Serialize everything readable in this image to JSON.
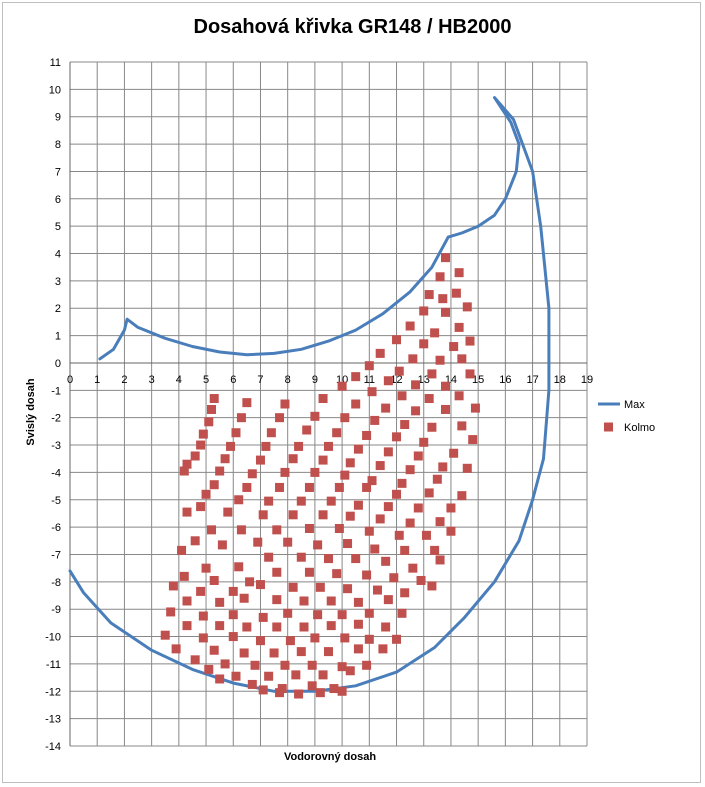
{
  "chart_data": {
    "type": "scatter",
    "title": "Dosahová křivka GR148 / HB2000",
    "xlabel": "Vodorovný dosah",
    "ylabel": "Svislý dosah",
    "xlim": [
      0,
      19
    ],
    "ylim": [
      -14,
      11
    ],
    "x_ticks": [
      "0",
      "1",
      "2",
      "3",
      "4",
      "5",
      "6",
      "7",
      "8",
      "9",
      "10",
      "11",
      "12",
      "13",
      "14",
      "15",
      "16",
      "17",
      "18",
      "19"
    ],
    "y_ticks": [
      "11",
      "10",
      "9",
      "8",
      "7",
      "6",
      "5",
      "4",
      "3",
      "2",
      "1",
      "0",
      "-1",
      "-2",
      "-3",
      "-4",
      "-5",
      "-6",
      "-7",
      "-8",
      "-9",
      "-10",
      "-11",
      "-12",
      "-13",
      "-14"
    ],
    "grid": true,
    "legend_position": "right",
    "series": [
      {
        "name": "Max",
        "kind": "line",
        "color": "#4a7ebb",
        "points": [
          [
            1.1,
            0.15
          ],
          [
            1.6,
            0.5
          ],
          [
            2.0,
            1.2
          ],
          [
            2.1,
            1.6
          ],
          [
            2.5,
            1.3
          ],
          [
            3.5,
            0.9
          ],
          [
            4.5,
            0.6
          ],
          [
            5.5,
            0.4
          ],
          [
            6.5,
            0.3
          ],
          [
            7.5,
            0.35
          ],
          [
            8.5,
            0.5
          ],
          [
            9.5,
            0.8
          ],
          [
            10.5,
            1.2
          ],
          [
            11.5,
            1.8
          ],
          [
            12.5,
            2.6
          ],
          [
            13.3,
            3.5
          ],
          [
            13.9,
            4.6
          ],
          [
            14.4,
            4.75
          ],
          [
            15.0,
            5.0
          ],
          [
            15.6,
            5.4
          ],
          [
            16.0,
            6.0
          ],
          [
            16.4,
            7.0
          ],
          [
            16.5,
            8.0
          ],
          [
            16.2,
            8.8
          ],
          [
            15.6,
            9.7
          ],
          [
            16.3,
            8.9
          ],
          [
            17.0,
            7.0
          ],
          [
            17.3,
            5.0
          ],
          [
            17.6,
            2.0
          ],
          [
            17.6,
            -1.0
          ],
          [
            17.4,
            -3.5
          ],
          [
            17.0,
            -5.0
          ],
          [
            16.5,
            -6.5
          ],
          [
            15.6,
            -8.0
          ],
          [
            14.5,
            -9.3
          ],
          [
            13.4,
            -10.4
          ],
          [
            12.0,
            -11.3
          ],
          [
            10.5,
            -11.8
          ],
          [
            9.0,
            -12.0
          ],
          [
            7.5,
            -12.0
          ],
          [
            6.0,
            -11.7
          ],
          [
            4.5,
            -11.2
          ],
          [
            3.0,
            -10.5
          ],
          [
            1.5,
            -9.5
          ],
          [
            0.5,
            -8.4
          ],
          [
            0.0,
            -7.6
          ]
        ]
      },
      {
        "name": "Kolmo",
        "kind": "scatter",
        "color": "#c0504d",
        "points": [
          [
            13.8,
            3.85
          ],
          [
            14.3,
            3.3
          ],
          [
            13.6,
            3.15
          ],
          [
            13.2,
            2.5
          ],
          [
            14.2,
            2.55
          ],
          [
            13.7,
            2.35
          ],
          [
            14.6,
            2.05
          ],
          [
            13.0,
            1.9
          ],
          [
            13.8,
            1.85
          ],
          [
            14.3,
            1.3
          ],
          [
            12.5,
            1.35
          ],
          [
            13.4,
            1.1
          ],
          [
            14.7,
            0.8
          ],
          [
            12.0,
            0.85
          ],
          [
            13.0,
            0.7
          ],
          [
            14.1,
            0.6
          ],
          [
            11.4,
            0.35
          ],
          [
            12.6,
            0.15
          ],
          [
            13.6,
            0.1
          ],
          [
            14.4,
            0.15
          ],
          [
            11.0,
            -0.1
          ],
          [
            12.1,
            -0.3
          ],
          [
            13.3,
            -0.4
          ],
          [
            14.7,
            -0.4
          ],
          [
            10.5,
            -0.5
          ],
          [
            11.7,
            -0.65
          ],
          [
            12.7,
            -0.8
          ],
          [
            13.8,
            -0.85
          ],
          [
            14.3,
            -1.2
          ],
          [
            10.0,
            -0.85
          ],
          [
            11.1,
            -1.05
          ],
          [
            12.2,
            -1.2
          ],
          [
            13.2,
            -1.3
          ],
          [
            14.9,
            -1.65
          ],
          [
            5.3,
            -1.3
          ],
          [
            6.5,
            -1.45
          ],
          [
            7.9,
            -1.5
          ],
          [
            9.3,
            -1.3
          ],
          [
            10.5,
            -1.5
          ],
          [
            11.6,
            -1.65
          ],
          [
            12.7,
            -1.75
          ],
          [
            13.8,
            -1.7
          ],
          [
            5.2,
            -1.7
          ],
          [
            6.3,
            -2.0
          ],
          [
            7.7,
            -2.0
          ],
          [
            9.0,
            -1.95
          ],
          [
            10.1,
            -2.0
          ],
          [
            11.2,
            -2.1
          ],
          [
            12.3,
            -2.25
          ],
          [
            13.3,
            -2.35
          ],
          [
            14.4,
            -2.3
          ],
          [
            5.1,
            -2.15
          ],
          [
            6.1,
            -2.55
          ],
          [
            7.4,
            -2.55
          ],
          [
            8.7,
            -2.45
          ],
          [
            9.8,
            -2.55
          ],
          [
            10.9,
            -2.65
          ],
          [
            12.0,
            -2.7
          ],
          [
            13.0,
            -2.9
          ],
          [
            14.8,
            -2.8
          ],
          [
            4.9,
            -2.6
          ],
          [
            5.9,
            -3.05
          ],
          [
            7.2,
            -3.05
          ],
          [
            8.4,
            -3.05
          ],
          [
            9.5,
            -3.05
          ],
          [
            10.6,
            -3.15
          ],
          [
            11.7,
            -3.25
          ],
          [
            12.8,
            -3.4
          ],
          [
            14.1,
            -3.3
          ],
          [
            4.8,
            -3.0
          ],
          [
            5.7,
            -3.5
          ],
          [
            7.0,
            -3.55
          ],
          [
            8.2,
            -3.5
          ],
          [
            9.3,
            -3.55
          ],
          [
            10.3,
            -3.65
          ],
          [
            11.4,
            -3.75
          ],
          [
            12.5,
            -3.9
          ],
          [
            13.7,
            -3.8
          ],
          [
            14.6,
            -3.85
          ],
          [
            4.2,
            -3.95
          ],
          [
            4.6,
            -3.4
          ],
          [
            5.5,
            -3.95
          ],
          [
            6.7,
            -4.05
          ],
          [
            7.9,
            -4.0
          ],
          [
            9.0,
            -4.0
          ],
          [
            10.1,
            -4.1
          ],
          [
            11.1,
            -4.3
          ],
          [
            12.2,
            -4.4
          ],
          [
            13.5,
            -4.25
          ],
          [
            4.3,
            -3.7
          ],
          [
            5.3,
            -4.45
          ],
          [
            6.5,
            -4.55
          ],
          [
            7.7,
            -4.55
          ],
          [
            8.8,
            -4.55
          ],
          [
            9.9,
            -4.55
          ],
          [
            10.9,
            -4.55
          ],
          [
            12.0,
            -4.8
          ],
          [
            13.2,
            -4.75
          ],
          [
            14.4,
            -4.85
          ],
          [
            4.3,
            -5.45
          ],
          [
            5.0,
            -4.8
          ],
          [
            6.2,
            -5.0
          ],
          [
            7.3,
            -5.05
          ],
          [
            8.5,
            -5.05
          ],
          [
            9.6,
            -5.05
          ],
          [
            10.6,
            -5.2
          ],
          [
            11.7,
            -5.25
          ],
          [
            12.8,
            -5.3
          ],
          [
            14.0,
            -5.3
          ],
          [
            4.8,
            -5.25
          ],
          [
            5.8,
            -5.45
          ],
          [
            7.1,
            -5.55
          ],
          [
            8.2,
            -5.55
          ],
          [
            9.3,
            -5.55
          ],
          [
            10.3,
            -5.6
          ],
          [
            11.4,
            -5.7
          ],
          [
            12.5,
            -5.85
          ],
          [
            13.6,
            -5.8
          ],
          [
            5.2,
            -6.1
          ],
          [
            6.3,
            -6.1
          ],
          [
            7.6,
            -6.1
          ],
          [
            8.8,
            -6.05
          ],
          [
            9.9,
            -6.05
          ],
          [
            11.0,
            -6.15
          ],
          [
            12.1,
            -6.3
          ],
          [
            13.1,
            -6.3
          ],
          [
            14.0,
            -6.15
          ],
          [
            4.1,
            -6.85
          ],
          [
            4.6,
            -6.5
          ],
          [
            5.6,
            -6.65
          ],
          [
            6.9,
            -6.55
          ],
          [
            8.0,
            -6.55
          ],
          [
            9.1,
            -6.65
          ],
          [
            10.2,
            -6.6
          ],
          [
            11.2,
            -6.8
          ],
          [
            12.3,
            -6.85
          ],
          [
            13.4,
            -6.85
          ],
          [
            5.0,
            -7.5
          ],
          [
            6.2,
            -7.45
          ],
          [
            7.3,
            -7.1
          ],
          [
            8.5,
            -7.1
          ],
          [
            9.5,
            -7.15
          ],
          [
            10.5,
            -7.15
          ],
          [
            11.6,
            -7.25
          ],
          [
            12.6,
            -7.5
          ],
          [
            13.6,
            -7.2
          ],
          [
            4.2,
            -7.8
          ],
          [
            5.3,
            -7.95
          ],
          [
            6.6,
            -8.0
          ],
          [
            7.6,
            -7.65
          ],
          [
            8.8,
            -7.65
          ],
          [
            9.8,
            -7.7
          ],
          [
            10.9,
            -7.75
          ],
          [
            11.9,
            -7.85
          ],
          [
            12.9,
            -7.95
          ],
          [
            3.8,
            -8.15
          ],
          [
            4.8,
            -8.35
          ],
          [
            6.0,
            -8.35
          ],
          [
            7.0,
            -8.1
          ],
          [
            8.2,
            -8.2
          ],
          [
            9.2,
            -8.2
          ],
          [
            10.2,
            -8.25
          ],
          [
            11.3,
            -8.3
          ],
          [
            12.3,
            -8.4
          ],
          [
            13.3,
            -8.15
          ],
          [
            4.3,
            -8.7
          ],
          [
            5.5,
            -8.75
          ],
          [
            6.4,
            -8.6
          ],
          [
            7.6,
            -8.65
          ],
          [
            8.6,
            -8.7
          ],
          [
            9.6,
            -8.7
          ],
          [
            10.6,
            -8.75
          ],
          [
            11.7,
            -8.65
          ],
          [
            3.7,
            -9.1
          ],
          [
            4.9,
            -9.25
          ],
          [
            6.0,
            -9.2
          ],
          [
            7.1,
            -9.3
          ],
          [
            8.0,
            -9.15
          ],
          [
            9.1,
            -9.2
          ],
          [
            10.0,
            -9.2
          ],
          [
            11.0,
            -9.15
          ],
          [
            12.2,
            -9.15
          ],
          [
            4.3,
            -9.6
          ],
          [
            5.5,
            -9.6
          ],
          [
            6.5,
            -9.65
          ],
          [
            7.6,
            -9.65
          ],
          [
            8.6,
            -9.65
          ],
          [
            9.6,
            -9.6
          ],
          [
            10.6,
            -9.55
          ],
          [
            11.6,
            -9.65
          ],
          [
            3.5,
            -9.95
          ],
          [
            4.9,
            -10.05
          ],
          [
            6.0,
            -10.0
          ],
          [
            7.0,
            -10.15
          ],
          [
            8.1,
            -10.15
          ],
          [
            9.0,
            -10.05
          ],
          [
            10.1,
            -10.05
          ],
          [
            11.0,
            -10.1
          ],
          [
            12.0,
            -10.1
          ],
          [
            3.9,
            -10.45
          ],
          [
            5.3,
            -10.5
          ],
          [
            6.4,
            -10.6
          ],
          [
            7.5,
            -10.6
          ],
          [
            8.5,
            -10.55
          ],
          [
            9.5,
            -10.55
          ],
          [
            10.6,
            -10.45
          ],
          [
            11.5,
            -10.45
          ],
          [
            4.6,
            -10.85
          ],
          [
            5.7,
            -11.0
          ],
          [
            6.8,
            -11.05
          ],
          [
            7.9,
            -11.05
          ],
          [
            8.9,
            -11.05
          ],
          [
            10.0,
            -11.1
          ],
          [
            10.9,
            -11.05
          ],
          [
            5.1,
            -11.2
          ],
          [
            6.1,
            -11.45
          ],
          [
            7.3,
            -11.45
          ],
          [
            8.3,
            -11.4
          ],
          [
            9.3,
            -11.4
          ],
          [
            10.3,
            -11.25
          ],
          [
            5.5,
            -11.55
          ],
          [
            6.7,
            -11.75
          ],
          [
            7.8,
            -11.9
          ],
          [
            8.9,
            -11.8
          ],
          [
            9.7,
            -11.9
          ],
          [
            7.1,
            -11.95
          ],
          [
            7.7,
            -12.05
          ],
          [
            8.4,
            -12.1
          ],
          [
            9.2,
            -12.05
          ],
          [
            10.0,
            -12.0
          ]
        ]
      }
    ]
  }
}
